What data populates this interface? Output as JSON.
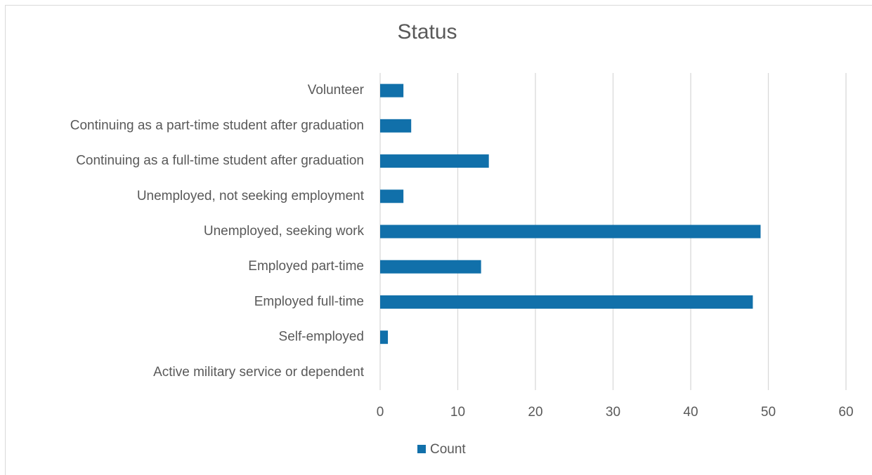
{
  "chart_data": {
    "type": "bar",
    "orientation": "horizontal",
    "title": "Status",
    "categories": [
      "Volunteer",
      "Continuing as a part-time student after graduation",
      "Continuing as a full-time student after graduation",
      "Unemployed, not seeking employment",
      "Unemployed, seeking work",
      "Employed part-time",
      "Employed full-time",
      "Self-employed",
      "Active military service or dependent"
    ],
    "series": [
      {
        "name": "Count",
        "color": "#1170aa",
        "values": [
          3,
          4,
          14,
          3,
          49,
          13,
          48,
          1,
          0
        ]
      }
    ],
    "xlim": [
      0,
      60
    ],
    "xticks": [
      0,
      10,
      20,
      30,
      40,
      50,
      60
    ],
    "grid": true,
    "legend": "bottom"
  }
}
